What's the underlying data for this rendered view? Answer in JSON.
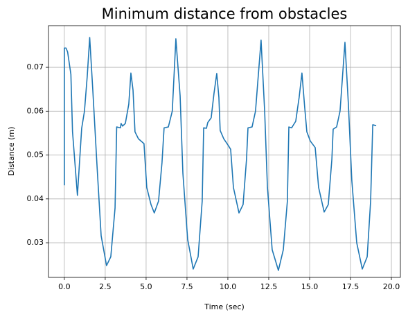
{
  "chart_data": {
    "type": "line",
    "title": "Minimum distance from obstacles",
    "xlabel": "Time (sec)",
    "ylabel": "Distance (m)",
    "color": "#1f77b4",
    "grid": true,
    "xlim": [
      -0.97,
      20.55
    ],
    "ylim": [
      0.0221,
      0.0795
    ],
    "xticks": [
      {
        "value": 0,
        "label": "0.0"
      },
      {
        "value": 2.5,
        "label": "2.5"
      },
      {
        "value": 5,
        "label": "5.0"
      },
      {
        "value": 7.5,
        "label": "7.5"
      },
      {
        "value": 10,
        "label": "10.0"
      },
      {
        "value": 12.5,
        "label": "12.5"
      },
      {
        "value": 15,
        "label": "15.0"
      },
      {
        "value": 17.5,
        "label": "17.5"
      },
      {
        "value": 20,
        "label": "20.0"
      }
    ],
    "yticks": [
      0.03,
      0.04,
      0.05,
      0.06,
      0.07
    ],
    "x": [
      0,
      0,
      0.1,
      0.2,
      0.4,
      0.5,
      0.8,
      1.06,
      1.23,
      1.4,
      1.55,
      1.74,
      2.0,
      2.25,
      2.58,
      2.84,
      3.1,
      3.2,
      3.43,
      3.47,
      3.56,
      3.73,
      3.94,
      4.07,
      4.2,
      4.32,
      4.53,
      4.87,
      5.04,
      5.3,
      5.5,
      5.76,
      5.97,
      6.1,
      6.36,
      6.6,
      6.82,
      7.08,
      7.25,
      7.54,
      7.88,
      8.18,
      8.43,
      8.52,
      8.69,
      8.77,
      8.98,
      9.15,
      9.32,
      9.45,
      9.53,
      9.75,
      10.04,
      10.17,
      10.34,
      10.68,
      10.93,
      11.14,
      11.23,
      11.48,
      11.69,
      12.03,
      12.25,
      12.42,
      12.71,
      13.09,
      13.39,
      13.64,
      13.73,
      13.9,
      14.15,
      14.36,
      14.53,
      14.7,
      14.83,
      15.04,
      15.34,
      15.55,
      15.89,
      16.14,
      16.36,
      16.44,
      16.65,
      16.86,
      17.16,
      17.37,
      17.58,
      17.88,
      18.22,
      18.52,
      18.73,
      18.86,
      19.07
    ],
    "values": [
      0.0431,
      0.0744,
      0.0744,
      0.0735,
      0.0684,
      0.0553,
      0.0408,
      0.0561,
      0.06,
      0.068,
      0.0768,
      0.0648,
      0.0474,
      0.0316,
      0.0248,
      0.0268,
      0.0379,
      0.0564,
      0.0562,
      0.0572,
      0.0566,
      0.0572,
      0.0616,
      0.0687,
      0.0648,
      0.0553,
      0.0537,
      0.0526,
      0.0426,
      0.0387,
      0.0368,
      0.0395,
      0.0482,
      0.0562,
      0.0564,
      0.06,
      0.0765,
      0.0635,
      0.0458,
      0.0308,
      0.024,
      0.0268,
      0.0395,
      0.0562,
      0.0561,
      0.0574,
      0.0585,
      0.064,
      0.0686,
      0.0632,
      0.0556,
      0.0537,
      0.0521,
      0.0513,
      0.0426,
      0.0368,
      0.0387,
      0.049,
      0.0562,
      0.0564,
      0.06,
      0.0762,
      0.06,
      0.0426,
      0.0284,
      0.0237,
      0.0284,
      0.0395,
      0.0564,
      0.0562,
      0.0577,
      0.0632,
      0.0687,
      0.0608,
      0.0553,
      0.0532,
      0.0517,
      0.0426,
      0.037,
      0.0387,
      0.049,
      0.0559,
      0.0564,
      0.06,
      0.0757,
      0.0616,
      0.0442,
      0.03,
      0.024,
      0.0268,
      0.0395,
      0.0569,
      0.0567
    ]
  }
}
